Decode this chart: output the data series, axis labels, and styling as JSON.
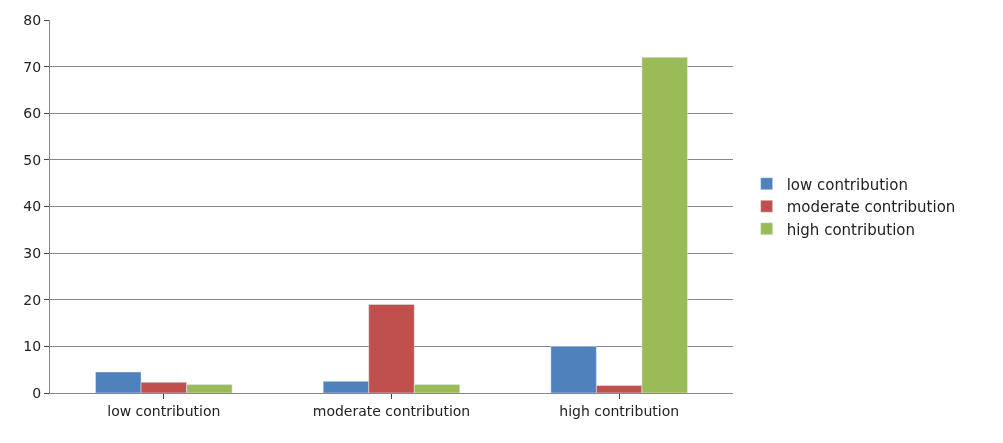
{
  "chart_data": {
    "type": "bar",
    "categories": [
      "low contribution",
      "moderate contribution",
      "high contribution"
    ],
    "series": [
      {
        "name": "low contribution",
        "color": "#4f81bd",
        "values": [
          4.5,
          2.5,
          10
        ]
      },
      {
        "name": "moderate contribution",
        "color": "#c0504d",
        "values": [
          2.3,
          19,
          1.6
        ]
      },
      {
        "name": "high contribution",
        "color": "#9bbb59",
        "values": [
          1.8,
          1.8,
          72
        ]
      }
    ],
    "ylim": [
      0,
      80
    ],
    "yticks": [
      0,
      10,
      20,
      30,
      40,
      50,
      60,
      70,
      80
    ],
    "grid": "y",
    "legend": "right"
  }
}
